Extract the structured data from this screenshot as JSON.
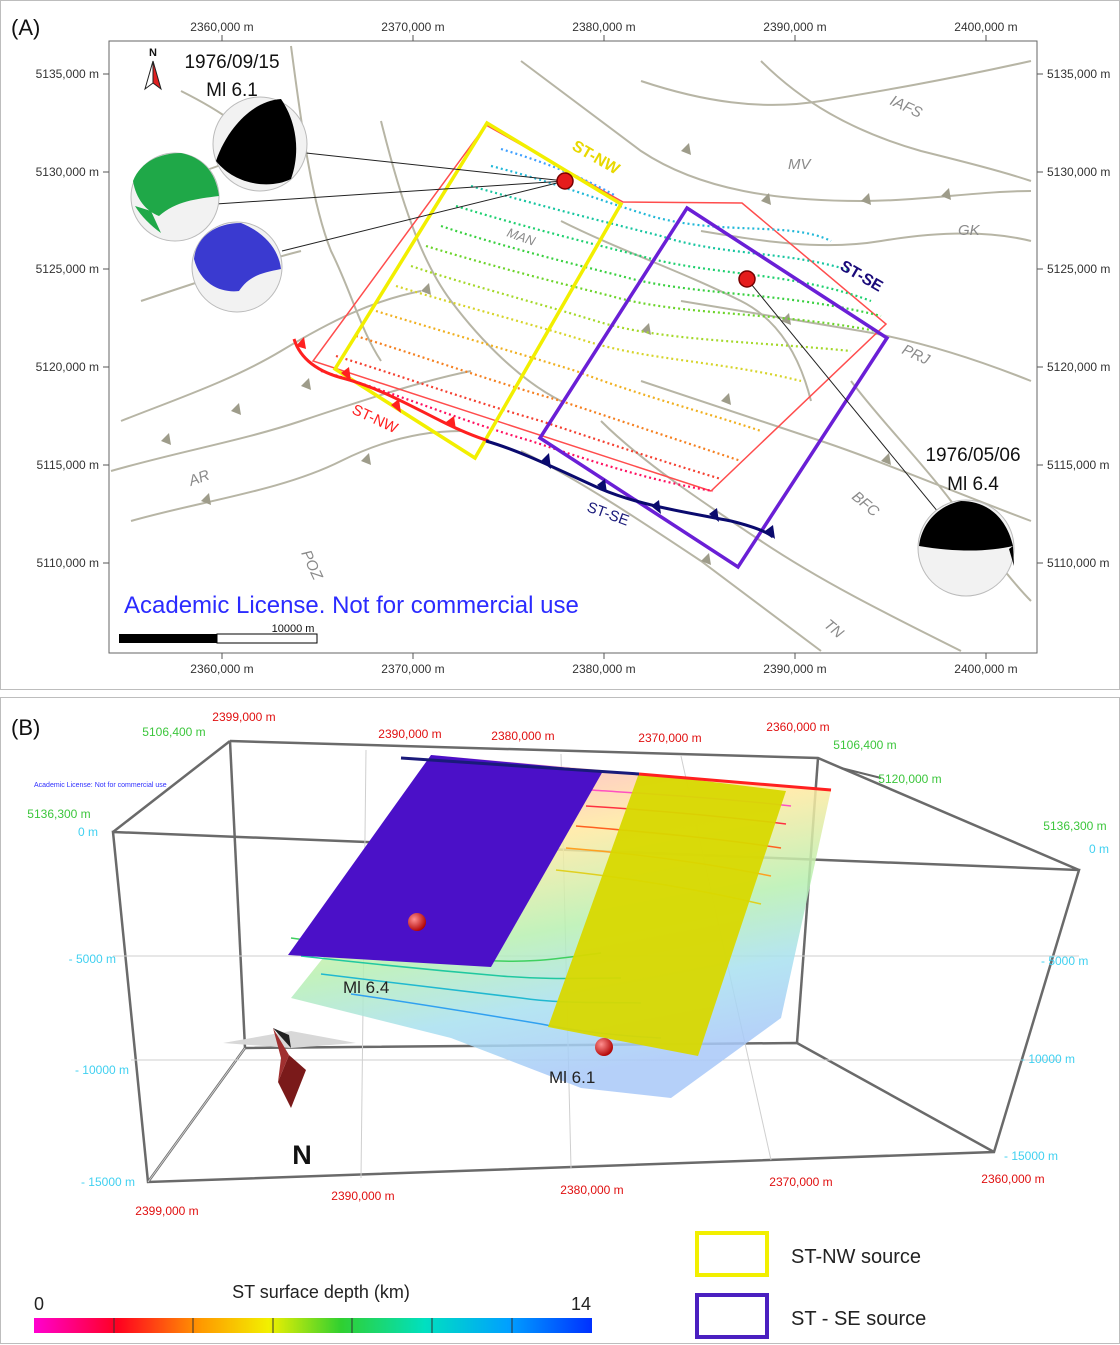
{
  "panelA": {
    "label": "(A)",
    "x_ticks": [
      "2360,000 m",
      "2370,000 m",
      "2380,000 m",
      "2390,000 m",
      "2400,000 m"
    ],
    "y_ticks": [
      "5135,000 m",
      "5130,000 m",
      "5125,000 m",
      "5120,000 m",
      "5115,000 m",
      "5110,000 m"
    ],
    "north_label": "N",
    "event1": {
      "date": "1976/09/15",
      "mag": "Ml 6.1"
    },
    "event2": {
      "date": "1976/05/06",
      "mag": "Ml 6.4"
    },
    "fault_labels": {
      "iafs": "IAFS",
      "mv": "MV",
      "gk": "GK",
      "man": "MAN",
      "prj": "PRJ",
      "bfc": "BFC",
      "ar": "AR",
      "poz": "POZ",
      "tn": "TN"
    },
    "source_labels": {
      "st_nw_top": "ST-NW",
      "st_se_top": "ST-SE",
      "st_nw_trace": "ST-NW",
      "st_se_trace": "ST-SE"
    },
    "license": "Academic License. Not for commercial use",
    "scale_label": "10000 m",
    "colors": {
      "st_nw": "#f2ef00",
      "st_se": "#6a1fd6",
      "outline": "#ff3b3b",
      "license": "#2b2bff"
    }
  },
  "panelB": {
    "label": "(B)",
    "red_ticks_top": [
      "2399,000 m",
      "2390,000 m",
      "2380,000 m",
      "2370,000 m",
      "2360,000 m"
    ],
    "red_ticks_bottom": [
      "2399,000 m",
      "2390,000 m",
      "2380,000 m",
      "2370,000 m",
      "2360,000 m"
    ],
    "green_ticks": [
      "5106,400 m",
      "5136,300 m",
      "5106,400 m",
      "5120,000 m",
      "5136,300 m"
    ],
    "depth_ticks_left": [
      "0 m",
      "- 5000 m",
      "- 10000 m",
      "- 15000 m"
    ],
    "depth_ticks_right": [
      "0 m",
      "- 5000 m",
      "- 10000 m",
      "- 15000 m"
    ],
    "mag1": "Ml 6.4",
    "mag2": "Ml 6.1",
    "north_label": "N",
    "license_small": "Academic License: Not for commercial use"
  },
  "colorbar": {
    "title": "ST surface depth (km)",
    "min": "0",
    "max": "14"
  },
  "legend": [
    {
      "label": "ST-NW source",
      "color": "#f2ef00"
    },
    {
      "label": "ST - SE source",
      "color": "#4a1fc0"
    }
  ]
}
